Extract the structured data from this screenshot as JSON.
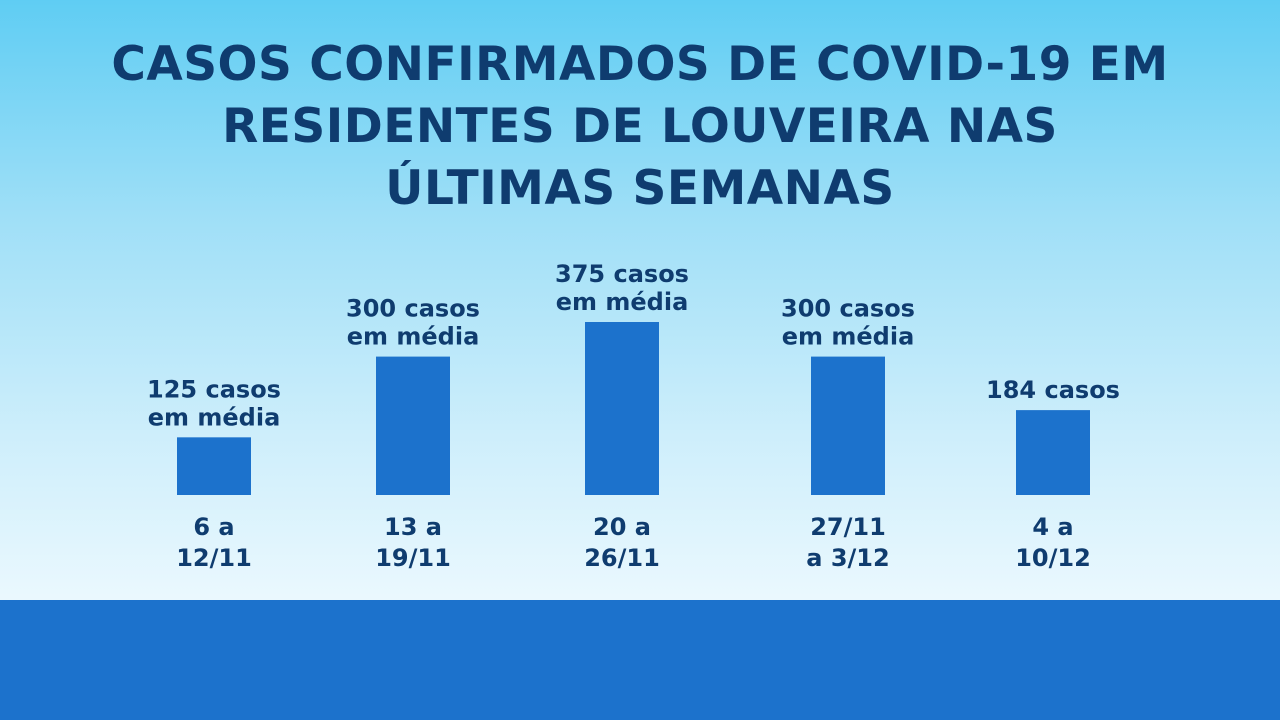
{
  "title_lines": [
    "CASOS CONFIRMADOS DE COVID-19 EM",
    "RESIDENTES DE LOUVEIRA NAS",
    "ÚLTIMAS SEMANAS"
  ],
  "colors": {
    "bar": "#1c72cc",
    "text": "#0f3c6f",
    "footer": "#1c72cc"
  },
  "chart_data": {
    "type": "bar",
    "title": "CASOS CONFIRMADOS DE COVID-19 EM RESIDENTES DE LOUVEIRA NAS ÚLTIMAS SEMANAS",
    "xlabel": "",
    "ylabel": "",
    "ylim": [
      0,
      375
    ],
    "grid": false,
    "categories": [
      [
        "6 a",
        "12/11"
      ],
      [
        "13 a",
        "19/11"
      ],
      [
        "20 a",
        "26/11"
      ],
      [
        "27/11",
        "a 3/12"
      ],
      [
        "4 a",
        "10/12"
      ]
    ],
    "values": [
      125,
      300,
      375,
      300,
      184
    ],
    "data_labels": [
      [
        "125 casos",
        "em média"
      ],
      [
        "300 casos",
        "em média"
      ],
      [
        "375 casos",
        "em média"
      ],
      [
        "300 casos",
        "em média"
      ],
      [
        "184 casos"
      ]
    ]
  }
}
